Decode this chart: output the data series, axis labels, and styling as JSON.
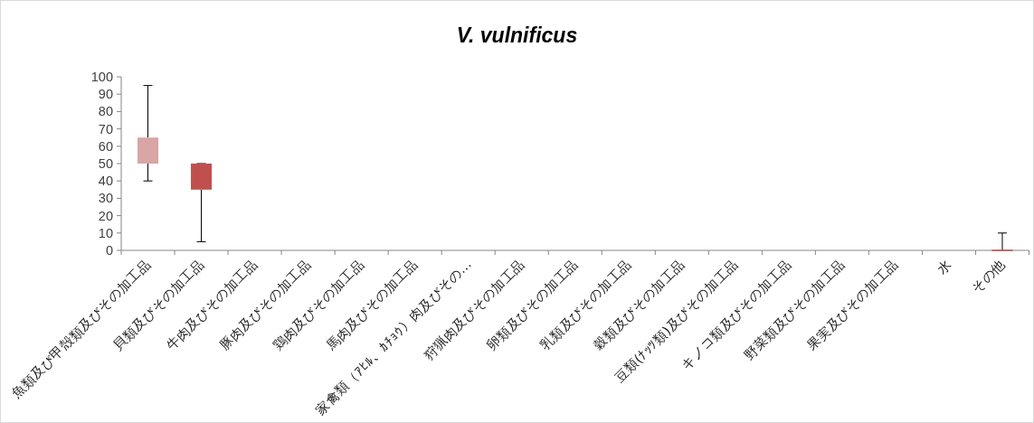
{
  "chart_data": {
    "type": "box",
    "title": "V. vulnificus",
    "categories": [
      "魚類及び甲殻類及びその加工品",
      "貝類及びその加工品",
      "牛肉及びその加工品",
      "豚肉及びその加工品",
      "鶏肉及びその加工品",
      "馬肉及びその加工品",
      "家禽類（ｱﾋﾙ、ｶﾁｮｳ）肉及びその…",
      "狩猟肉及びその加工品",
      "卵類及びその加工品",
      "乳類及びその加工品",
      "穀類及びその加工品",
      "豆類(ﾅｯﾂ類)及びその加工品",
      "キノコ類及びその加工品",
      "野菜類及びその加工品",
      "果実及びその加工品",
      "水",
      "その他"
    ],
    "boxes": [
      {
        "low": 40,
        "q1": 50,
        "median": 65,
        "q3": 65,
        "high": 95
      },
      {
        "low": 5,
        "q1": 35,
        "median": 35,
        "q3": 50,
        "high": 50
      },
      null,
      null,
      null,
      null,
      null,
      null,
      null,
      null,
      null,
      null,
      null,
      null,
      null,
      null,
      {
        "low": 0,
        "q1": 0,
        "median": 0,
        "q3": 0,
        "high": 10
      }
    ],
    "colors": [
      "#d9a5a5",
      "#c0504d",
      null,
      null,
      null,
      null,
      null,
      null,
      null,
      null,
      null,
      null,
      null,
      null,
      null,
      null,
      "#c0504d"
    ],
    "ylim": [
      0,
      100
    ],
    "yticks": [
      0,
      10,
      20,
      30,
      40,
      50,
      60,
      70,
      80,
      90,
      100
    ]
  }
}
